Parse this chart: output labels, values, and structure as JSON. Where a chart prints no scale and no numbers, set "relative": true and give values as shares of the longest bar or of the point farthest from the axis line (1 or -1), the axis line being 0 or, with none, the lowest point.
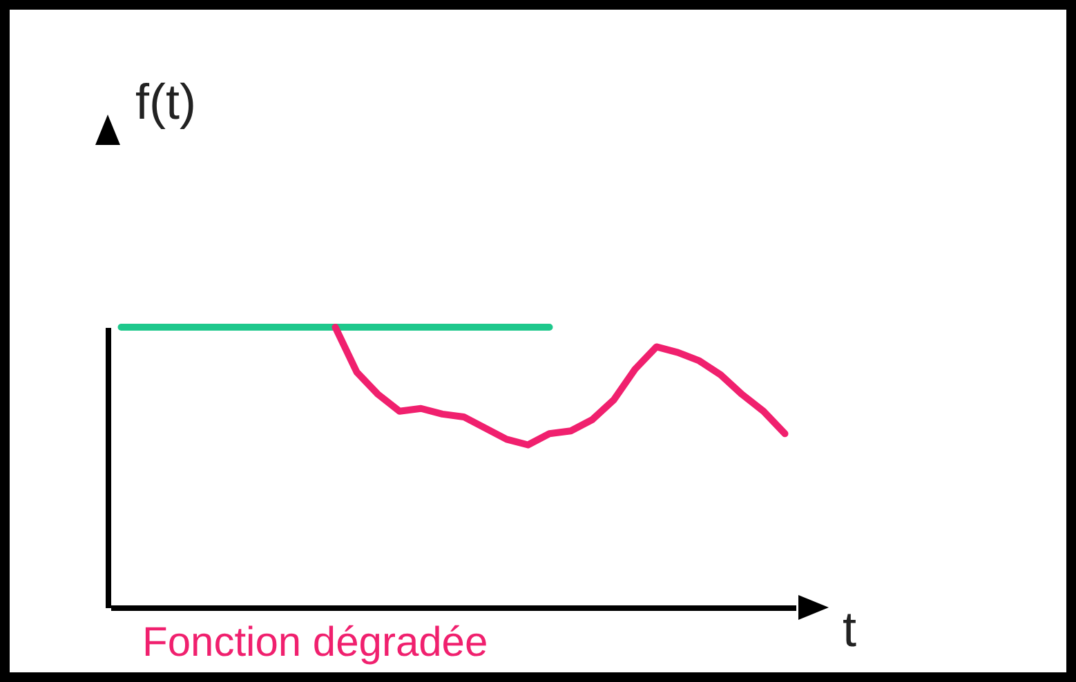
{
  "chart_data": {
    "type": "line",
    "relative": true,
    "ylabel": "f(t)",
    "xlabel": "t",
    "annotations": [
      "Fonction dégradée"
    ],
    "line_style": "solid",
    "categories": [
      null,
      null,
      null,
      null,
      null,
      null,
      null,
      null,
      null,
      null,
      null,
      null,
      null,
      null,
      null,
      null,
      null,
      null,
      null,
      null,
      null,
      null,
      null,
      null,
      null,
      null,
      null,
      null,
      null,
      null,
      null,
      null
    ],
    "series": [
      {
        "color": "#1ec88c",
        "values": [
          1,
          1,
          1,
          1,
          1,
          1,
          1,
          1,
          1,
          1,
          1,
          1,
          1,
          1,
          1,
          1,
          1,
          1,
          1,
          1,
          1,
          null,
          null,
          null,
          null,
          null,
          null,
          null,
          null,
          null,
          null,
          null
        ]
      },
      {
        "color": "#f0206e",
        "values": [
          null,
          null,
          null,
          null,
          null,
          null,
          null,
          null,
          null,
          null,
          1,
          0.84,
          0.76,
          0.7,
          0.71,
          0.69,
          0.68,
          0.64,
          0.6,
          0.58,
          0.62,
          0.63,
          0.67,
          0.74,
          0.85,
          0.93,
          0.91,
          0.88,
          0.83,
          0.76,
          0.7,
          0.62
        ]
      }
    ]
  }
}
